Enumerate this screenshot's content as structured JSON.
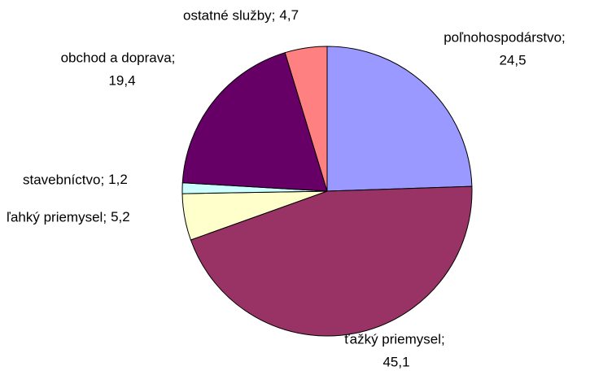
{
  "chart_data": {
    "type": "pie",
    "categories": [
      "poľnohospodárstvo;",
      "ťažký priemysel;",
      "ľahký priemysel;",
      "stavebníctvo;",
      "obchod a doprava;",
      "ostatné služby;"
    ],
    "values": [
      24.5,
      45.1,
      5.2,
      1.2,
      19.4,
      4.7
    ],
    "value_labels": [
      "24,5",
      "45,1",
      "5,2",
      "1,2",
      "19,4",
      "4,7"
    ],
    "colors": [
      "#9999ff",
      "#993366",
      "#ffffcc",
      "#ccffff",
      "#660066",
      "#ff8080"
    ]
  }
}
